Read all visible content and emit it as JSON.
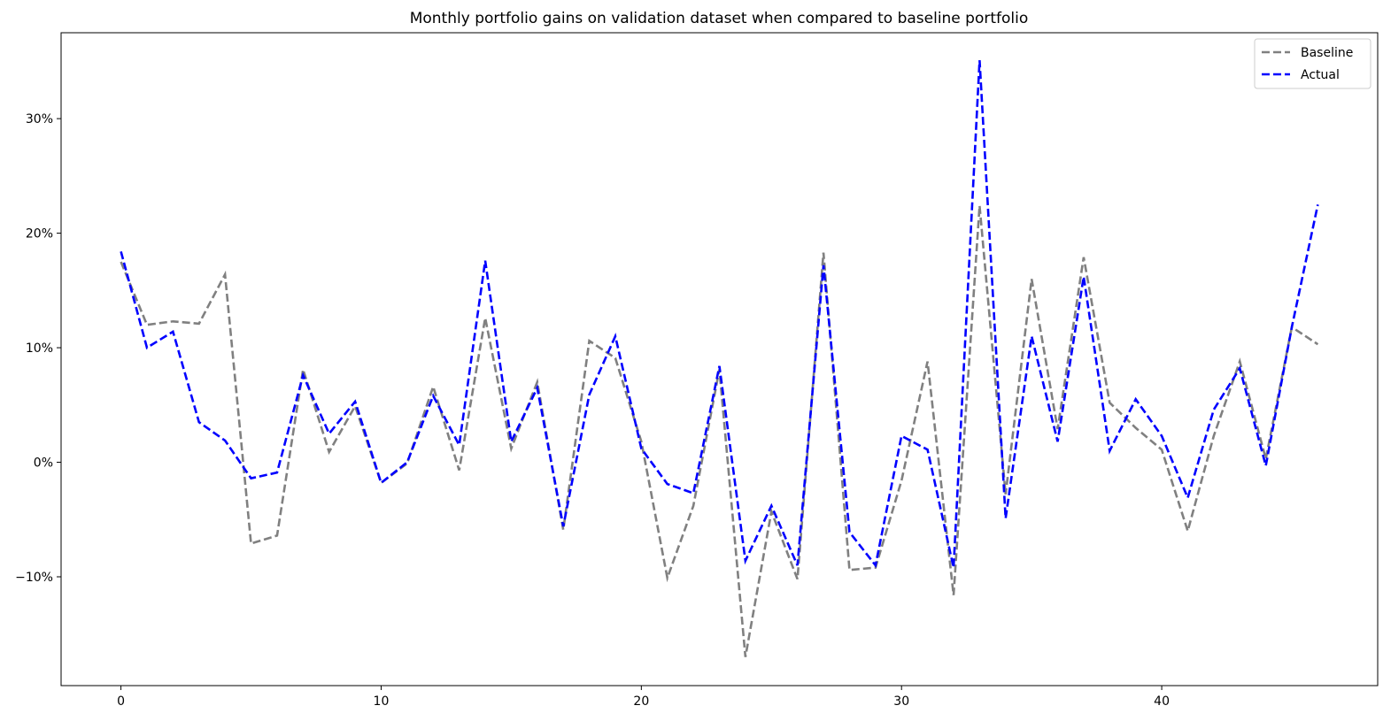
{
  "chart_data": {
    "type": "line",
    "title": "Monthly portfolio gains on validation dataset when compared to baseline portfolio",
    "xlabel": "",
    "ylabel": "",
    "x": [
      0,
      1,
      2,
      3,
      4,
      5,
      6,
      7,
      8,
      9,
      10,
      11,
      12,
      13,
      14,
      15,
      16,
      17,
      18,
      19,
      20,
      21,
      22,
      23,
      24,
      25,
      26,
      27,
      28,
      29,
      30,
      31,
      32,
      33,
      34,
      35,
      36,
      37,
      38,
      39,
      40,
      41,
      42,
      43,
      44,
      45,
      46
    ],
    "xticks": [
      0,
      10,
      20,
      30,
      40
    ],
    "xtick_labels": [
      "0",
      "10",
      "20",
      "30",
      "40"
    ],
    "xlim": [
      -2.3,
      48.3
    ],
    "yticks": [
      -10,
      0,
      10,
      20,
      30
    ],
    "ytick_labels": [
      "−10%",
      "0%",
      "10%",
      "20%",
      "30%"
    ],
    "ylim": [
      -19.5,
      37.5
    ],
    "grid": false,
    "legend": "top-right",
    "series": [
      {
        "name": "Baseline",
        "color": "#808080",
        "dash": "dashed",
        "values": [
          17.5,
          12.0,
          12.3,
          12.1,
          16.4,
          -7.1,
          -6.4,
          8.1,
          0.9,
          4.9,
          -1.8,
          -0.1,
          6.6,
          -0.7,
          12.6,
          1.2,
          7.0,
          -5.9,
          10.6,
          9.1,
          1.8,
          -10.1,
          -3.8,
          8.1,
          -17.0,
          -4.3,
          -10.2,
          18.3,
          -9.4,
          -9.2,
          -1.6,
          8.8,
          -11.6,
          22.4,
          -2.8,
          16.0,
          2.9,
          17.9,
          5.2,
          3.0,
          1.1,
          -6.0,
          2.3,
          8.8,
          0.3,
          11.8,
          10.3
        ]
      },
      {
        "name": "Actual",
        "color": "#0000ff",
        "dash": "dashed",
        "values": [
          18.4,
          10.0,
          11.4,
          3.5,
          1.9,
          -1.4,
          -0.9,
          7.6,
          2.5,
          5.3,
          -1.8,
          0.0,
          5.8,
          1.5,
          17.6,
          1.8,
          6.5,
          -5.6,
          5.9,
          11.0,
          1.2,
          -1.9,
          -2.7,
          8.4,
          -8.6,
          -3.8,
          -9.0,
          17.2,
          -6.1,
          -9.0,
          2.3,
          1.1,
          -9.2,
          35.1,
          -4.9,
          11.0,
          1.8,
          16.2,
          1.0,
          5.5,
          2.3,
          -3.1,
          4.6,
          8.2,
          -0.3,
          11.8,
          22.5
        ]
      }
    ]
  }
}
